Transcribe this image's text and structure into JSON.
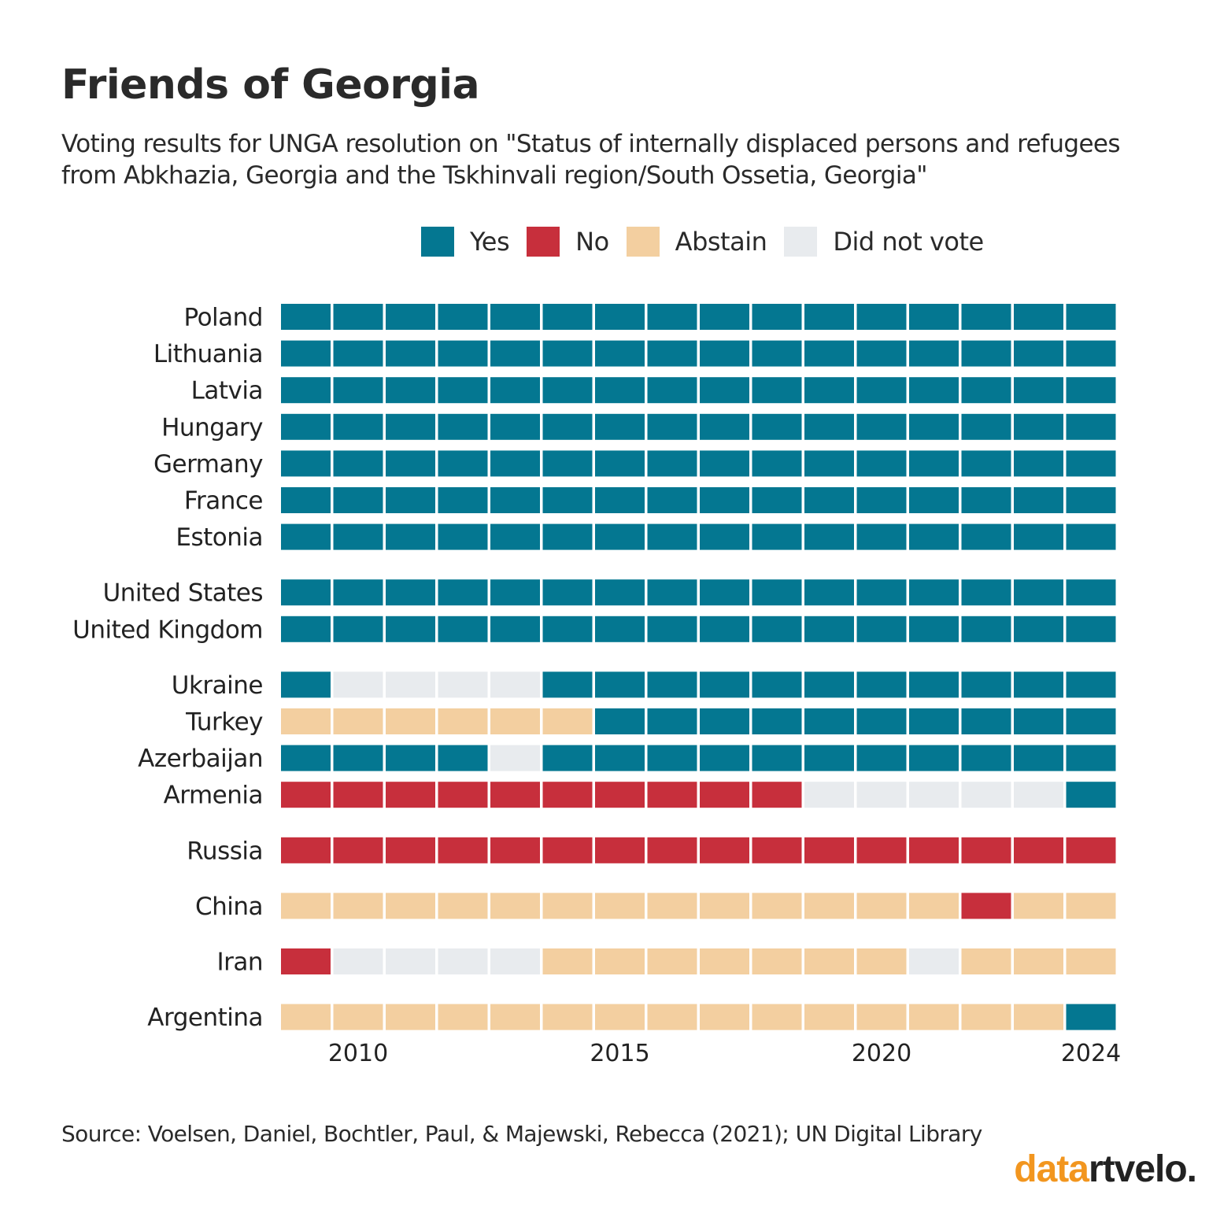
{
  "header": {
    "title": "Friends of Georgia",
    "subtitle": "Voting results for UNGA resolution on \"Status of internally displaced persons and refugees from Abkhazia, Georgia and the Tskhinvali region/South Ossetia, Georgia\""
  },
  "legend": [
    {
      "key": "Y",
      "label": "Yes",
      "color": "#047791"
    },
    {
      "key": "N",
      "label": "No",
      "color": "#c72f3c"
    },
    {
      "key": "A",
      "label": "Abstain",
      "color": "#f3cfa0"
    },
    {
      "key": "D",
      "label": "Did not vote",
      "color": "#e8ebee"
    }
  ],
  "chart_data": {
    "type": "heatmap",
    "years": [
      2009,
      2010,
      2011,
      2012,
      2013,
      2014,
      2015,
      2016,
      2017,
      2018,
      2019,
      2020,
      2021,
      2022,
      2023,
      2024
    ],
    "x_tick_labels": [
      "2010",
      "2015",
      "2020",
      "2024"
    ],
    "x_tick_years": [
      2010,
      2015,
      2020,
      2024
    ],
    "categories": {
      "Y": "Yes",
      "N": "No",
      "A": "Abstain",
      "D": "Did not vote"
    },
    "groups": [
      {
        "rows": [
          {
            "country": "Poland",
            "votes": "YYYYYYYYYYYYYYYY"
          },
          {
            "country": "Lithuania",
            "votes": "YYYYYYYYYYYYYYYY"
          },
          {
            "country": "Latvia",
            "votes": "YYYYYYYYYYYYYYYY"
          },
          {
            "country": "Hungary",
            "votes": "YYYYYYYYYYYYYYYY"
          },
          {
            "country": "Germany",
            "votes": "YYYYYYYYYYYYYYYY"
          },
          {
            "country": "France",
            "votes": "YYYYYYYYYYYYYYYY"
          },
          {
            "country": "Estonia",
            "votes": "YYYYYYYYYYYYYYYY"
          }
        ]
      },
      {
        "rows": [
          {
            "country": "United States",
            "votes": "YYYYYYYYYYYYYYYY"
          },
          {
            "country": "United Kingdom",
            "votes": "YYYYYYYYYYYYYYYY"
          }
        ]
      },
      {
        "rows": [
          {
            "country": "Ukraine",
            "votes": "YDDDDYYYYYYYYYYY"
          },
          {
            "country": "Turkey",
            "votes": "AAAAAAYYYYYYYYYY"
          },
          {
            "country": "Azerbaijan",
            "votes": "YYYYDYYYYYYYYYYY"
          },
          {
            "country": "Armenia",
            "votes": "NNNNNNNNNNDDDDDY"
          }
        ]
      },
      {
        "rows": [
          {
            "country": "Russia",
            "votes": "NNNNNNNNNNNNNNNN"
          }
        ]
      },
      {
        "rows": [
          {
            "country": "China",
            "votes": "AAAAAAAAAAAAANAA"
          }
        ]
      },
      {
        "rows": [
          {
            "country": "Iran",
            "votes": "NDDDDAAAAAAADAAA"
          }
        ]
      },
      {
        "rows": [
          {
            "country": "Argentina",
            "votes": "AAAAAAAAAAAAAAAY"
          }
        ]
      }
    ]
  },
  "footer": {
    "source": "Source: Voelsen, Daniel, Bochtler, Paul, & Majewski, Rebecca (2021); UN Digital Library",
    "logo_part1": "data",
    "logo_part2": "rtvelo."
  }
}
